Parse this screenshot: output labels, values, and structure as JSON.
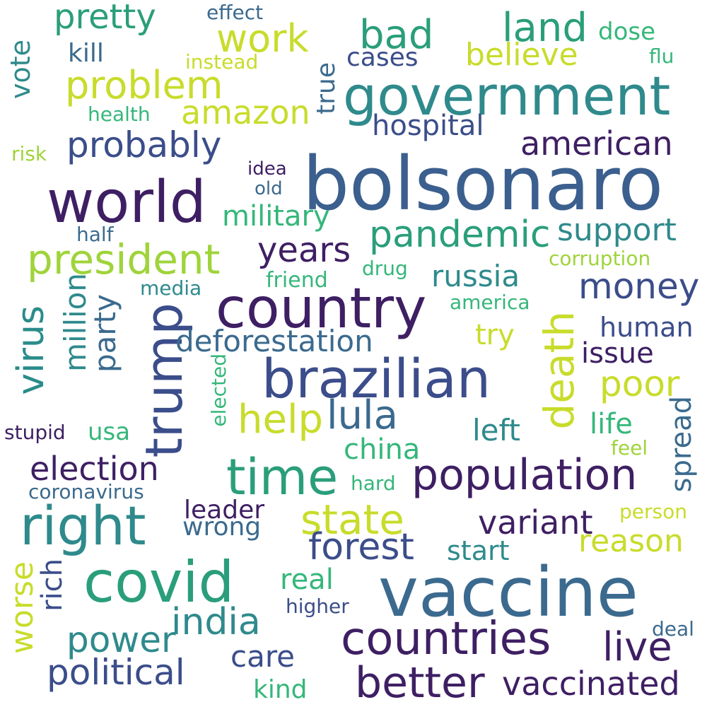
{
  "palette": {
    "deep_purple": "#3e1f63",
    "indigo": "#3b4d8a",
    "steel_blue": "#3b6a8e",
    "teal": "#2f8a8c",
    "sea_green": "#2a9e7a",
    "green": "#35b77a",
    "lime": "#9fd43a",
    "yellow": "#c8dc2b",
    "background": "#ffffff"
  },
  "words": [
    {
      "text": "bolsonaro",
      "color": "#3b5f8e"
    },
    {
      "text": "vaccine",
      "color": "#3b6a8e"
    },
    {
      "text": "government",
      "color": "#2f8a8c"
    },
    {
      "text": "country",
      "color": "#3e1f63"
    },
    {
      "text": "brazilian",
      "color": "#3b4d8a"
    },
    {
      "text": "world",
      "color": "#3e1f63"
    },
    {
      "text": "covid",
      "color": "#2a9e7a"
    },
    {
      "text": "right",
      "color": "#2f8a8c"
    },
    {
      "text": "trump",
      "color": "#3b4d8a"
    },
    {
      "text": "countries",
      "color": "#3e1f63"
    },
    {
      "text": "population",
      "color": "#3e1f63"
    },
    {
      "text": "time",
      "color": "#2a9e7a"
    },
    {
      "text": "better",
      "color": "#3e1f63"
    },
    {
      "text": "president",
      "color": "#9fd43a"
    },
    {
      "text": "problem",
      "color": "#c8dc2b"
    },
    {
      "text": "death",
      "color": "#c8dc2b"
    },
    {
      "text": "state",
      "color": "#c8dc2b"
    },
    {
      "text": "virus",
      "color": "#2a8c8a"
    },
    {
      "text": "pandemic",
      "color": "#2a9e7a"
    },
    {
      "text": "india",
      "color": "#2f8a8c"
    },
    {
      "text": "amazon",
      "color": "#c8dc2b"
    },
    {
      "text": "work",
      "color": "#c8dc2b"
    },
    {
      "text": "land",
      "color": "#2a9e7a"
    },
    {
      "text": "bad",
      "color": "#2a9e7a"
    },
    {
      "text": "probably",
      "color": "#3b4d8a"
    },
    {
      "text": "money",
      "color": "#3b4d8a"
    },
    {
      "text": "forest",
      "color": "#3b4d8a"
    },
    {
      "text": "political",
      "color": "#3b4d8a"
    },
    {
      "text": "vaccinated",
      "color": "#3e1f63"
    },
    {
      "text": "power",
      "color": "#2f8a8c"
    },
    {
      "text": "help",
      "color": "#c8dc2b"
    },
    {
      "text": "lula",
      "color": "#3b6a8e"
    },
    {
      "text": "live",
      "color": "#3e1f63"
    },
    {
      "text": "years",
      "color": "#3e1f63"
    },
    {
      "text": "election",
      "color": "#3e1f63"
    },
    {
      "text": "deforestation",
      "color": "#3b6a8e"
    },
    {
      "text": "support",
      "color": "#2f8a8c"
    },
    {
      "text": "american",
      "color": "#3e1f63"
    },
    {
      "text": "variant",
      "color": "#3e1f63"
    },
    {
      "text": "reason",
      "color": "#c8dc2b"
    },
    {
      "text": "pretty",
      "color": "#2a9e7a"
    },
    {
      "text": "believe",
      "color": "#c8dc2b"
    },
    {
      "text": "poor",
      "color": "#c8dc2b"
    },
    {
      "text": "russia",
      "color": "#2f8a8c"
    },
    {
      "text": "million",
      "color": "#2f8a8c"
    },
    {
      "text": "party",
      "color": "#3b6a8e"
    },
    {
      "text": "military",
      "color": "#35b77a"
    },
    {
      "text": "hospital",
      "color": "#3b4d8a"
    },
    {
      "text": "care",
      "color": "#3b4d8a"
    },
    {
      "text": "china",
      "color": "#35b77a"
    },
    {
      "text": "left",
      "color": "#2f8a8c"
    },
    {
      "text": "spread",
      "color": "#3b6a8e"
    },
    {
      "text": "issue",
      "color": "#3e1f63"
    },
    {
      "text": "human",
      "color": "#3b4d8a"
    },
    {
      "text": "life",
      "color": "#35b77a"
    },
    {
      "text": "worse",
      "color": "#c8dc2b"
    },
    {
      "text": "rich",
      "color": "#3b4d8a"
    },
    {
      "text": "real",
      "color": "#35b77a"
    },
    {
      "text": "start",
      "color": "#2f8a8c"
    },
    {
      "text": "wrong",
      "color": "#3b6a8e"
    },
    {
      "text": "leader",
      "color": "#3e1f63"
    },
    {
      "text": "try",
      "color": "#c8dc2b"
    },
    {
      "text": "vote",
      "color": "#2f8a8c"
    },
    {
      "text": "true",
      "color": "#3b6a8e"
    },
    {
      "text": "cases",
      "color": "#3b4d8a"
    },
    {
      "text": "kill",
      "color": "#3b6a8e"
    },
    {
      "text": "kind",
      "color": "#35b77a"
    },
    {
      "text": "dose",
      "color": "#35b77a"
    },
    {
      "text": "usa",
      "color": "#35b77a"
    },
    {
      "text": "higher",
      "color": "#3b4d8a"
    },
    {
      "text": "effect",
      "color": "#3b6a8e"
    },
    {
      "text": "instead",
      "color": "#c8dc2b"
    },
    {
      "text": "health",
      "color": "#35b77a"
    },
    {
      "text": "risk",
      "color": "#9fd43a"
    },
    {
      "text": "idea",
      "color": "#3e1f63"
    },
    {
      "text": "old",
      "color": "#3b6a8e"
    },
    {
      "text": "half",
      "color": "#3b6a8e"
    },
    {
      "text": "media",
      "color": "#2f8a8c"
    },
    {
      "text": "friend",
      "color": "#35b77a"
    },
    {
      "text": "drug",
      "color": "#35b77a"
    },
    {
      "text": "america",
      "color": "#35b77a"
    },
    {
      "text": "corruption",
      "color": "#9fd43a"
    },
    {
      "text": "flu",
      "color": "#35b77a"
    },
    {
      "text": "stupid",
      "color": "#3e1f63"
    },
    {
      "text": "elected",
      "color": "#35b77a"
    },
    {
      "text": "coronavirus",
      "color": "#3b6a8e"
    },
    {
      "text": "hard",
      "color": "#35b77a"
    },
    {
      "text": "feel",
      "color": "#9fd43a"
    },
    {
      "text": "person",
      "color": "#c8dc2b"
    },
    {
      "text": "deal",
      "color": "#3b6a8e"
    }
  ]
}
